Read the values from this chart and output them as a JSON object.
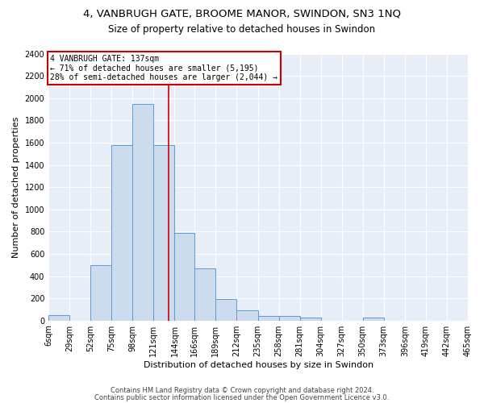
{
  "title1": "4, VANBRUGH GATE, BROOME MANOR, SWINDON, SN3 1NQ",
  "title2": "Size of property relative to detached houses in Swindon",
  "xlabel": "Distribution of detached houses by size in Swindon",
  "ylabel": "Number of detached properties",
  "bin_edges": [
    6,
    29,
    52,
    75,
    98,
    121,
    144,
    166,
    189,
    212,
    235,
    258,
    281,
    304,
    327,
    350,
    373,
    396,
    419,
    442,
    465
  ],
  "bar_heights": [
    50,
    0,
    500,
    1580,
    1950,
    1580,
    790,
    470,
    195,
    90,
    40,
    40,
    25,
    0,
    0,
    25,
    0,
    0,
    0,
    0
  ],
  "bar_color": "#ccdcee",
  "bar_edgecolor": "#5b9bd5",
  "vline_x": 137,
  "vline_color": "#cc0000",
  "annotation_text": "4 VANBRUGH GATE: 137sqm\n← 71% of detached houses are smaller (5,195)\n28% of semi-detached houses are larger (2,044) →",
  "annotation_box_color": "#ffffff",
  "annotation_box_edgecolor": "#cc0000",
  "ylim": [
    0,
    2400
  ],
  "yticks": [
    0,
    200,
    400,
    600,
    800,
    1000,
    1200,
    1400,
    1600,
    1800,
    2000,
    2200,
    2400
  ],
  "background_color": "#e8eef8",
  "footer1": "Contains HM Land Registry data © Crown copyright and database right 2024.",
  "footer2": "Contains public sector information licensed under the Open Government Licence v3.0.",
  "title1_fontsize": 9.5,
  "title2_fontsize": 8.5,
  "xlabel_fontsize": 8,
  "ylabel_fontsize": 8,
  "tick_fontsize": 7,
  "footer_fontsize": 6
}
